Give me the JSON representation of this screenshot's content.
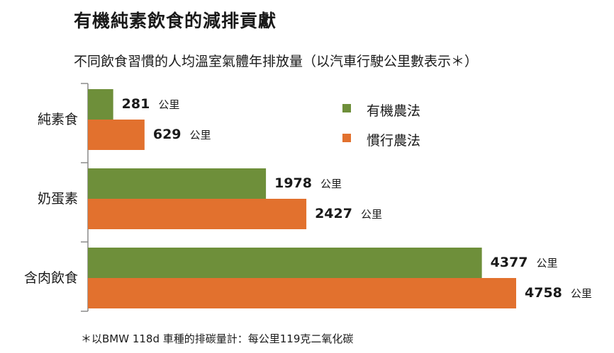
{
  "title": "有機純素飲食的減排貢獻",
  "subtitle": "不同飲食習慣的人均溫室氣體年排放量（以汽車行駛公里數表示＊）",
  "footnote": "＊以BMW 118d 車種的排碳量計：每公里119克二氧化碳",
  "unit": "公里",
  "colors": {
    "organic": "#6e8f3a",
    "conventional": "#e2712e",
    "axis": "#8a8a8a"
  },
  "chart_data": {
    "type": "bar",
    "orientation": "horizontal",
    "categories": [
      "純素食",
      "奶蛋素",
      "含肉飲食"
    ],
    "series": [
      {
        "name": "有機農法",
        "values": [
          281,
          1978,
          4377
        ]
      },
      {
        "name": "慣行農法",
        "values": [
          629,
          2427,
          4758
        ]
      }
    ],
    "value_unit": "公里",
    "xlim": [
      0,
      4758
    ],
    "legend_position": "top-right",
    "grid": false
  }
}
